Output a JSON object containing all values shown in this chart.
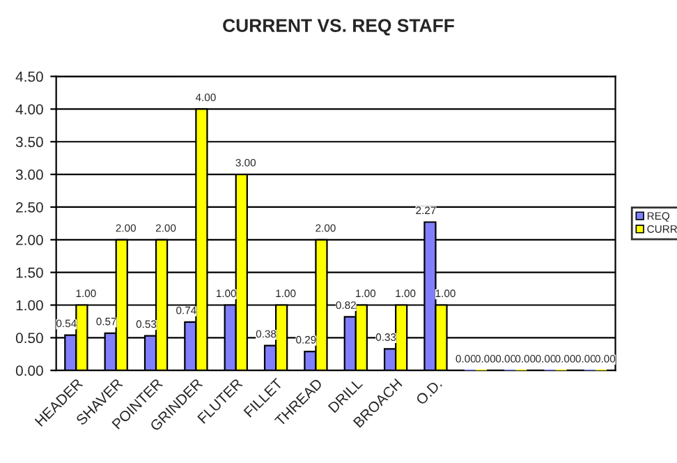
{
  "chart_data": {
    "type": "bar",
    "title": "CURRENT VS. REQ STAFF",
    "categories": [
      "HEADER",
      "SHAVER",
      "POINTER",
      "GRINDER",
      "FLUTER",
      "FILLET",
      "THREAD",
      "DRILL",
      "BROACH",
      "O.D.",
      null,
      null,
      null,
      null
    ],
    "series": [
      {
        "name": "REQ",
        "color": "#8080ff",
        "values": [
          0.54,
          0.57,
          0.53,
          0.74,
          1.0,
          0.38,
          0.29,
          0.82,
          0.33,
          2.27,
          0,
          0,
          0,
          0
        ],
        "value_labels": [
          "0.54",
          "0.57",
          "0.53",
          "0.74",
          "1.00",
          "0.38",
          "0.29",
          "0.82",
          "0.33",
          "2.27",
          "0.00",
          "0.00",
          "0.00",
          "0.00"
        ]
      },
      {
        "name": "CURR",
        "color": "#ffff00",
        "values": [
          1,
          2,
          2,
          4,
          3,
          1,
          2,
          1,
          1,
          1,
          0,
          0,
          0,
          0
        ],
        "value_labels": [
          "1.00",
          "2.00",
          "2.00",
          "4.00",
          "3.00",
          "1.00",
          "2.00",
          "1.00",
          "1.00",
          "1.00",
          "0.00",
          "0.00",
          "0.00",
          "0.00"
        ]
      }
    ],
    "ylim": [
      0,
      4.5
    ],
    "yticks": [
      {
        "value": 0,
        "label": "0.00"
      },
      {
        "value": 0.5,
        "label": "0.50"
      },
      {
        "value": 1,
        "label": "1.00"
      },
      {
        "value": 1.5,
        "label": "1.50"
      },
      {
        "value": 2,
        "label": "2.00"
      },
      {
        "value": 2.5,
        "label": "2.50"
      },
      {
        "value": 3,
        "label": "3.00"
      },
      {
        "value": 3.5,
        "label": "3.50"
      },
      {
        "value": 4,
        "label": "4.00"
      },
      {
        "value": 4.5,
        "label": "4.50"
      }
    ],
    "grid": "y",
    "legend": "right"
  }
}
